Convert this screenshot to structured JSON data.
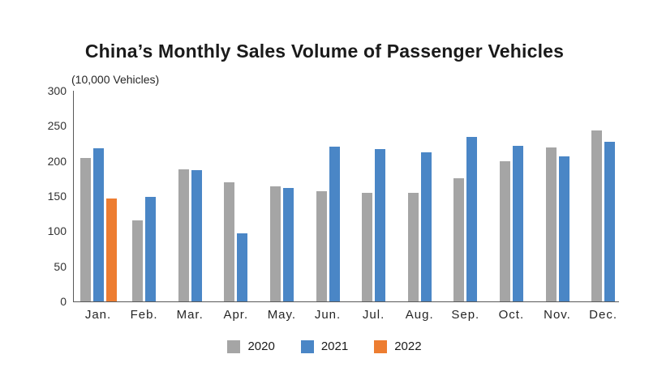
{
  "chart_data": {
    "type": "bar",
    "title": "China’s Monthly Sales Volume of Passenger Vehicles",
    "ylabel": "(10,000 Vehicles)",
    "xlabel": "",
    "categories": [
      "Jan.",
      "Feb.",
      "Mar.",
      "Apr.",
      "May.",
      "Jun.",
      "Jul.",
      "Aug.",
      "Sep.",
      "Oct.",
      "Nov.",
      "Dec."
    ],
    "series": [
      {
        "name": "2020",
        "color": "#a5a5a5",
        "values": [
          204,
          116,
          188,
          170,
          164,
          157,
          155,
          155,
          175,
          200,
          219,
          243
        ]
      },
      {
        "name": "2021",
        "color": "#4a86c6",
        "values": [
          218,
          149,
          187,
          97,
          162,
          221,
          217,
          212,
          234,
          222,
          207,
          227
        ]
      },
      {
        "name": "2022",
        "color": "#ed7d31",
        "values": [
          147,
          null,
          null,
          null,
          null,
          null,
          null,
          null,
          null,
          null,
          null,
          null
        ]
      }
    ],
    "ylim": [
      0,
      300
    ],
    "yticks": [
      0,
      50,
      100,
      150,
      200,
      250,
      300
    ],
    "grid": false,
    "legend_position": "bottom",
    "axis_color": "#595959"
  }
}
